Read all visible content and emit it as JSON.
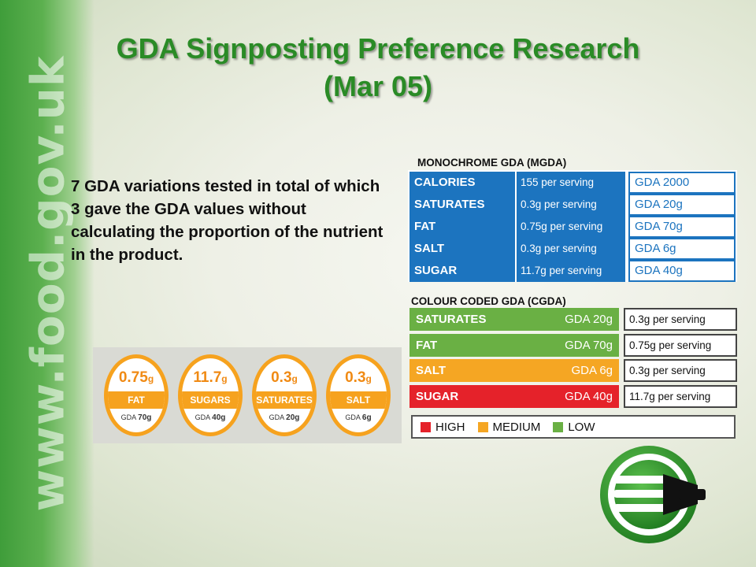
{
  "slide": {
    "title_line1": "GDA Signposting Preference Research",
    "title_line2": "(Mar 05)",
    "body": "7 GDA variations tested in total of which 3 gave the GDA values without calculating the proportion of the nutrient in the product.",
    "side_url": "www.food.gov.uk"
  },
  "mgda": {
    "label": "MONOCHROME GDA (MGDA)",
    "color": "#1c74bf",
    "rows": [
      {
        "name": "CALORIES",
        "serving": "155 per serving",
        "gda": "GDA 2000"
      },
      {
        "name": "SATURATES",
        "serving": "0.3g per serving",
        "gda": "GDA 20g"
      },
      {
        "name": "FAT",
        "serving": "0.75g per serving",
        "gda": "GDA 70g"
      },
      {
        "name": "SALT",
        "serving": "0.3g per serving",
        "gda": "GDA 6g"
      },
      {
        "name": "SUGAR",
        "serving": "11.7g per serving",
        "gda": "GDA 40g"
      }
    ]
  },
  "cgda": {
    "label": "COLOUR CODED GDA (CGDA)",
    "rows": [
      {
        "name": "SATURATES",
        "gda": "GDA 20g",
        "serving": "0.3g per serving",
        "color": "#6ab044"
      },
      {
        "name": "FAT",
        "gda": "GDA 70g",
        "serving": "0.75g per serving",
        "color": "#6ab044"
      },
      {
        "name": "SALT",
        "gda": "GDA 6g",
        "serving": "0.3g per serving",
        "color": "#f5a623"
      },
      {
        "name": "SUGAR",
        "gda": "GDA 40g",
        "serving": "11.7g per serving",
        "color": "#e5222a"
      }
    ],
    "legend": [
      {
        "label": "HIGH",
        "color": "#e5222a"
      },
      {
        "label": "MEDIUM",
        "color": "#f5a623"
      },
      {
        "label": "LOW",
        "color": "#6ab044"
      }
    ]
  },
  "badges": {
    "accent": "#f6a21e",
    "items": [
      {
        "value": "0.75",
        "unit": "g",
        "name": "FAT",
        "gda_label": "GDA",
        "gda_value": "70g"
      },
      {
        "value": "11.7",
        "unit": "g",
        "name": "SUGARS",
        "gda_label": "GDA",
        "gda_value": "40g"
      },
      {
        "value": "0.3",
        "unit": "g",
        "name": "SATURATES",
        "gda_label": "GDA",
        "gda_value": "20g"
      },
      {
        "value": "0.3",
        "unit": "g",
        "name": "SALT",
        "gda_label": "GDA",
        "gda_value": "6g"
      }
    ]
  },
  "logo": {
    "icon": "fork-logo-icon",
    "color": "#2f8f2a"
  }
}
